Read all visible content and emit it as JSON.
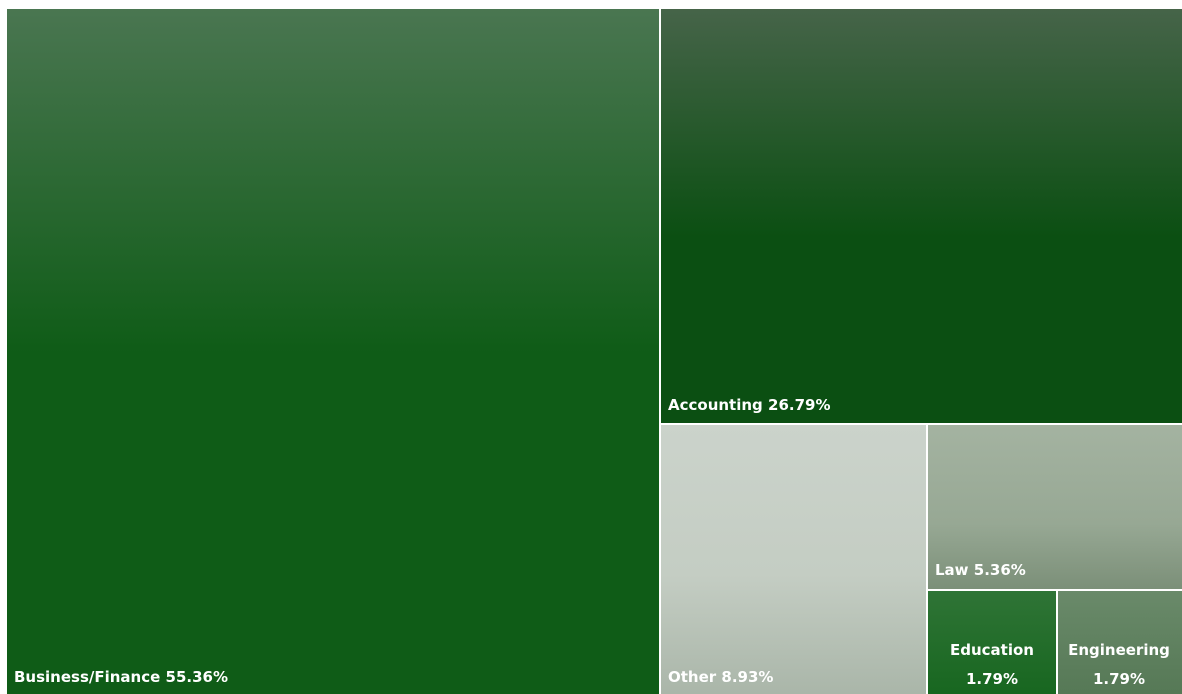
{
  "chart_data": {
    "type": "treemap",
    "title": "",
    "items": [
      {
        "name": "Business/Finance",
        "value": 55.36,
        "label": "Business/Finance 55.36%",
        "color": "#0f5c17"
      },
      {
        "name": "Accounting",
        "value": 26.79,
        "label": "Accounting 26.79%",
        "color": "#0b4f12"
      },
      {
        "name": "Other",
        "value": 8.93,
        "label": "Other 8.93%",
        "color": "#c4cdc3"
      },
      {
        "name": "Law",
        "value": 5.36,
        "label": "Law 5.36%",
        "color": "#97a894"
      },
      {
        "name": "Education",
        "value": 1.79,
        "label_lines": [
          "Education",
          "1.79%"
        ],
        "color": "#17661f"
      },
      {
        "name": "Engineering",
        "value": 1.79,
        "label_lines": [
          "Engineering",
          "1.79%"
        ],
        "color": "#5a7d5a"
      }
    ]
  }
}
